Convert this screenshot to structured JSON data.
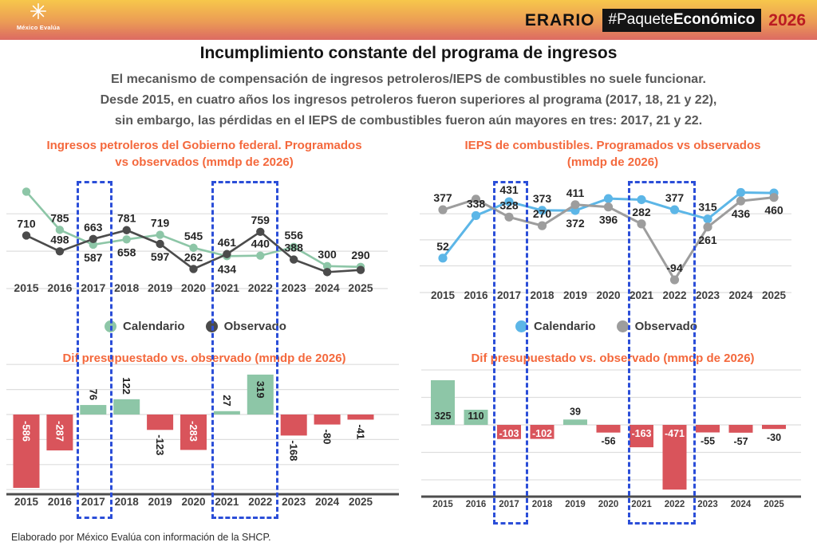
{
  "header": {
    "logo_name": "México Evalúa",
    "erario": "ERARIO",
    "hashtag_regular": "#Paquete",
    "hashtag_bold": "Económico",
    "year": "2026"
  },
  "page": {
    "title": "Incumplimiento constante del programa de ingresos",
    "subtitle_lines": [
      "El mecanismo de compensación de ingresos petroleros/IEPS de combustibles no suele funcionar.",
      "Desde 2015, en cuatro años los ingresos petroleros fueron superiores al programa (2017, 18, 21 y 22),",
      "sin embargo, las pérdidas en el IEPS de combustibles fueron aún mayores en tres: 2017, 21 y 22."
    ],
    "footer": "Elaborado por México Evalúa con información de la SHCP."
  },
  "colors": {
    "accent_orange": "#f4683c",
    "green": "#8dc6a7",
    "dark": "#4b4b4b",
    "blue": "#5cb6e7",
    "gray": "#9d9d9d",
    "red": "#d9545b",
    "highlight_blue": "#2b4ed8",
    "brand_year_red": "#bb1b22",
    "header_gradient_top": "#f7c74b",
    "header_gradient_bottom": "#dc6a62"
  },
  "highlights": {
    "year_groups": [
      "2017",
      "2021–2022"
    ]
  },
  "chart_data": [
    {
      "id": "left_line",
      "type": "line",
      "title_lines": [
        "Ingresos petroleros del Gobierno federal. Programados",
        "vs observados (mmdp de 2026)"
      ],
      "categories": [
        "2015",
        "2016",
        "2017",
        "2018",
        "2019",
        "2020",
        "2021",
        "2022",
        "2023",
        "2024",
        "2025"
      ],
      "ylim": [
        0,
        1400
      ],
      "gridline_values": [
        1000,
        500,
        0
      ],
      "legend_position": "bottom",
      "series": [
        {
          "name": "Calendario",
          "color_key": "green",
          "values": [
            1296,
            785,
            587,
            658,
            719,
            545,
            434,
            440,
            556,
            300,
            290
          ],
          "labels": [
            null,
            "785",
            "587",
            "658",
            "719",
            "545",
            "434",
            "440",
            "556",
            "300",
            "290"
          ],
          "label_side": [
            null,
            "above",
            "below",
            "below",
            "above",
            "above",
            "below",
            "above",
            "above",
            "above",
            "above"
          ]
        },
        {
          "name": "Observado",
          "color_key": "dark",
          "values": [
            710,
            498,
            663,
            781,
            597,
            262,
            461,
            759,
            388,
            220,
            249
          ],
          "labels": [
            "710",
            "498",
            "663",
            "781",
            "597",
            "262",
            "461",
            "759",
            "388",
            null,
            null
          ],
          "label_side": [
            "above",
            "above",
            "above",
            "above",
            "below",
            "above",
            "above",
            "above",
            "above",
            null,
            null
          ]
        }
      ]
    },
    {
      "id": "right_line",
      "type": "line",
      "title_lines": [
        "IEPS de combustibles. Programados vs observados",
        "(mmdp de 2026)"
      ],
      "categories": [
        "2015",
        "2016",
        "2017",
        "2018",
        "2019",
        "2020",
        "2021",
        "2022",
        "2023",
        "2024",
        "2025"
      ],
      "ylim": [
        -180,
        560
      ],
      "gridline_values": [
        350,
        175,
        0
      ],
      "legend_position": "bottom",
      "series": [
        {
          "name": "Calendario",
          "color_key": "blue",
          "values": [
            52,
            338,
            431,
            373,
            372,
            452,
            445,
            377,
            315,
            493,
            490
          ],
          "labels": [
            "52",
            "338",
            "431",
            "373",
            "372",
            null,
            null,
            "377",
            "315",
            null,
            null
          ],
          "label_side": [
            "above",
            "above",
            "above",
            "above",
            "below",
            null,
            null,
            "above",
            "above",
            null,
            null
          ]
        },
        {
          "name": "Observado",
          "color_key": "gray",
          "values": [
            377,
            448,
            328,
            270,
            411,
            396,
            282,
            -94,
            261,
            436,
            460
          ],
          "labels": [
            "377",
            null,
            "328",
            "270",
            "411",
            "396",
            "282",
            "-94",
            "261",
            "436",
            "460"
          ],
          "label_side": [
            "above",
            null,
            "above",
            "above",
            "above",
            "below",
            "above",
            "above",
            "below",
            "below",
            "below"
          ]
        }
      ]
    },
    {
      "id": "left_bar",
      "type": "bar",
      "title": "Dif presupuestado vs. observado (mmdp de 2026)",
      "categories": [
        "2015",
        "2016",
        "2017",
        "2018",
        "2019",
        "2020",
        "2021",
        "2022",
        "2023",
        "2024",
        "2025"
      ],
      "values": [
        -586,
        -287,
        76,
        122,
        -123,
        -283,
        27,
        319,
        -168,
        -80,
        -41
      ],
      "labels": [
        "-586",
        "-287",
        "76",
        "122",
        "-123",
        "-283",
        "27",
        "319",
        "-168",
        "-80",
        "-41"
      ],
      "label_placement": [
        "inside",
        "inside",
        "outside",
        "outside",
        "outside",
        "inside",
        "outside",
        "inside",
        "outside",
        "outside",
        "outside"
      ],
      "rotated_labels": true,
      "positive_color_key": "green",
      "negative_color_key": "red",
      "ylim": [
        -650,
        450
      ],
      "gridline_values": [
        400,
        200,
        0,
        -200,
        -400,
        -600
      ]
    },
    {
      "id": "right_bar",
      "type": "bar",
      "title": "Dif presupuestado vs. observado (mmdp de 2026)",
      "categories": [
        "2015",
        "2016",
        "2017",
        "2018",
        "2019",
        "2020",
        "2021",
        "2022",
        "2023",
        "2024",
        "2025"
      ],
      "values": [
        325,
        110,
        -103,
        -102,
        39,
        -56,
        -163,
        -471,
        -55,
        -57,
        -30
      ],
      "labels": [
        "325",
        "110",
        "-103",
        "-102",
        "39",
        "-56",
        "-163",
        "-471",
        "-55",
        "-57",
        "-30"
      ],
      "label_placement": [
        "inside",
        "inside",
        "inside",
        "inside",
        "outside",
        "outside",
        "inside",
        "inside",
        "outside",
        "outside",
        "outside"
      ],
      "rotated_labels": false,
      "positive_color_key": "green",
      "negative_color_key": "red",
      "ylim": [
        -520,
        460
      ],
      "gridline_values": [
        400,
        200,
        0,
        -200,
        -400
      ]
    }
  ]
}
